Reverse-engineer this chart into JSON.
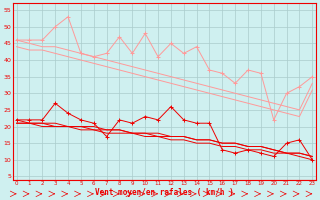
{
  "x": [
    0,
    1,
    2,
    3,
    4,
    5,
    6,
    7,
    8,
    9,
    10,
    11,
    12,
    13,
    14,
    15,
    16,
    17,
    18,
    19,
    20,
    21,
    22,
    23
  ],
  "line_jagged_light": [
    46,
    46,
    46,
    50,
    53,
    42,
    41,
    42,
    47,
    42,
    48,
    41,
    45,
    42,
    44,
    37,
    36,
    33,
    37,
    36,
    22,
    30,
    32,
    35
  ],
  "line_upper_env1": [
    46,
    45,
    44,
    44,
    43,
    42,
    41,
    40,
    39,
    38,
    37,
    36,
    35,
    34,
    33,
    32,
    31,
    30,
    29,
    28,
    27,
    26,
    25,
    33
  ],
  "line_upper_env2": [
    44,
    43,
    43,
    42,
    41,
    40,
    39,
    38,
    37,
    36,
    35,
    34,
    33,
    32,
    31,
    30,
    29,
    28,
    27,
    26,
    25,
    24,
    23,
    31
  ],
  "line_jagged_dark": [
    22,
    22,
    22,
    27,
    24,
    22,
    21,
    17,
    22,
    21,
    23,
    22,
    26,
    22,
    21,
    21,
    13,
    12,
    13,
    12,
    11,
    15,
    16,
    10
  ],
  "line_lower_env1": [
    22,
    21,
    21,
    21,
    20,
    20,
    20,
    19,
    19,
    18,
    18,
    18,
    17,
    17,
    16,
    16,
    15,
    15,
    14,
    14,
    13,
    12,
    12,
    11
  ],
  "line_lower_env2": [
    21,
    21,
    21,
    20,
    20,
    20,
    19,
    19,
    19,
    18,
    18,
    17,
    17,
    17,
    16,
    16,
    15,
    15,
    14,
    14,
    13,
    12,
    12,
    11
  ],
  "line_lower_env3": [
    21,
    21,
    20,
    20,
    20,
    19,
    19,
    18,
    18,
    18,
    17,
    17,
    16,
    16,
    15,
    15,
    14,
    14,
    13,
    13,
    12,
    12,
    11,
    10
  ],
  "bg_color": "#cff0f0",
  "grid_color": "#aacccc",
  "line_light_color": "#ff9999",
  "line_dark_color": "#ee0000",
  "ylabel_ticks": [
    5,
    10,
    15,
    20,
    25,
    30,
    35,
    40,
    45,
    50,
    55
  ],
  "xlabel": "Vent moyen/en rafales ( km/h )",
  "ylim": [
    4,
    57
  ],
  "xlim": [
    -0.3,
    23.3
  ]
}
